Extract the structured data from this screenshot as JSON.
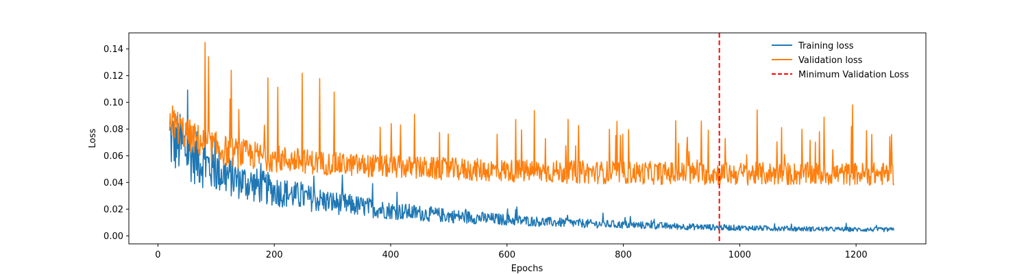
{
  "chart_data": {
    "type": "line",
    "title": "",
    "xlabel": "Epochs",
    "ylabel": "Loss",
    "xlim": [
      -50,
      1320
    ],
    "ylim": [
      -0.006,
      0.152
    ],
    "xticks": [
      0,
      200,
      400,
      600,
      800,
      1000,
      1200
    ],
    "xtick_labels": [
      "0",
      "200",
      "400",
      "600",
      "800",
      "1000",
      "1200"
    ],
    "yticks": [
      0.0,
      0.02,
      0.04,
      0.06,
      0.08,
      0.1,
      0.12,
      0.14
    ],
    "ytick_labels": [
      "0.00",
      "0.02",
      "0.04",
      "0.06",
      "0.08",
      "0.10",
      "0.12",
      "0.14"
    ],
    "grid": false,
    "legend_position": "top-right",
    "x_start": 20,
    "x_end": 1265,
    "series": [
      {
        "name": "Training loss",
        "color": "#1f77b4",
        "style": "solid",
        "x": [
          20,
          30,
          40,
          50,
          60,
          70,
          80,
          100,
          120,
          150,
          200,
          250,
          300,
          350,
          400,
          450,
          500,
          550,
          600,
          650,
          700,
          750,
          800,
          850,
          900,
          950,
          1000,
          1050,
          1100,
          1150,
          1200,
          1265
        ],
        "y": [
          0.073,
          0.07,
          0.068,
          0.064,
          0.06,
          0.057,
          0.054,
          0.049,
          0.045,
          0.04,
          0.034,
          0.029,
          0.025,
          0.022,
          0.019,
          0.017,
          0.015,
          0.0135,
          0.012,
          0.0108,
          0.0098,
          0.009,
          0.0083,
          0.0077,
          0.007,
          0.0065,
          0.006,
          0.0057,
          0.0053,
          0.005,
          0.0048,
          0.0046
        ]
      },
      {
        "name": "Validation loss",
        "color": "#ff7f0e",
        "style": "solid",
        "x": [
          20,
          30,
          40,
          50,
          60,
          80,
          100,
          120,
          150,
          200,
          250,
          300,
          350,
          400,
          450,
          500,
          550,
          600,
          650,
          700,
          750,
          800,
          850,
          900,
          950,
          1000,
          1050,
          1100,
          1150,
          1200,
          1265
        ],
        "y": [
          0.087,
          0.082,
          0.078,
          0.075,
          0.072,
          0.068,
          0.065,
          0.062,
          0.06,
          0.057,
          0.055,
          0.053,
          0.052,
          0.051,
          0.05,
          0.049,
          0.0485,
          0.048,
          0.0475,
          0.047,
          0.0467,
          0.0465,
          0.0462,
          0.046,
          0.0458,
          0.0457,
          0.0456,
          0.0455,
          0.0455,
          0.0455,
          0.0455
        ]
      }
    ],
    "min_validation_epoch": 965,
    "min_validation_label": "Minimum Validation Loss",
    "min_validation_color": "#ff0000",
    "min_validation_style": "dashed"
  }
}
